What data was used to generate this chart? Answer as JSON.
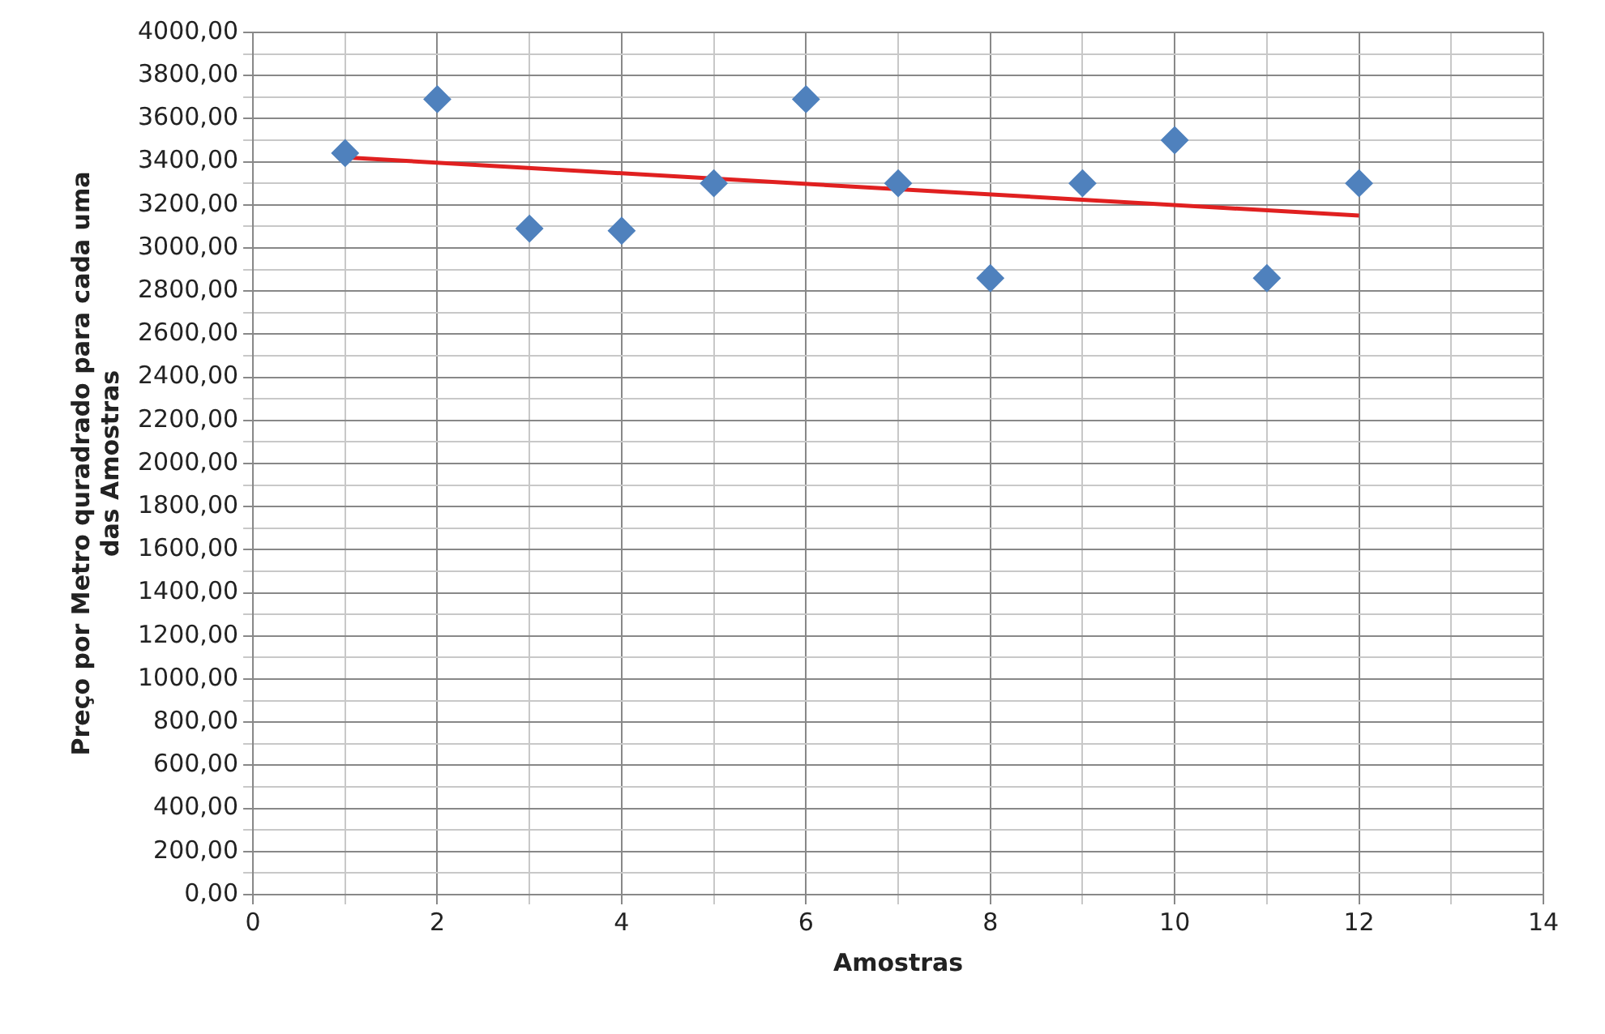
{
  "chart_data": {
    "type": "scatter",
    "xlabel": "Amostras",
    "ylabel": "Preço por Metro quradrado para cada uma\ndas Amostras",
    "x": [
      1,
      2,
      3,
      4,
      5,
      6,
      7,
      8,
      9,
      10,
      11,
      12
    ],
    "series": [
      {
        "color": "#4f81bd",
        "marker": "diamond",
        "values": [
          3440,
          3690,
          3090,
          3080,
          3300,
          3690,
          3300,
          2860,
          3300,
          3500,
          2860,
          3300
        ]
      },
      {
        "type": "line",
        "color": "#e02020",
        "marker": "none",
        "x": [
          1,
          12
        ],
        "values": [
          3420,
          3150
        ]
      }
    ],
    "xlim": [
      0,
      14
    ],
    "xticks": [
      0,
      {
        "value": 1,
        "label": null
      },
      2,
      {
        "value": 3,
        "label": null
      },
      4,
      {
        "value": 5,
        "label": null
      },
      6,
      {
        "value": 7,
        "label": null
      },
      8,
      {
        "value": 9,
        "label": null
      },
      10,
      {
        "value": 11,
        "label": null
      },
      12,
      {
        "value": 13,
        "label": null
      },
      14
    ],
    "ylim": [
      0,
      4000
    ],
    "yticks": [
      {
        "value": 0,
        "label": "0,00"
      },
      {
        "value": 100,
        "label": null
      },
      {
        "value": 200,
        "label": "200,00"
      },
      {
        "value": 300,
        "label": null
      },
      {
        "value": 400,
        "label": "400,00"
      },
      {
        "value": 500,
        "label": null
      },
      {
        "value": 600,
        "label": "600,00"
      },
      {
        "value": 700,
        "label": null
      },
      {
        "value": 800,
        "label": "800,00"
      },
      {
        "value": 900,
        "label": null
      },
      {
        "value": 1000,
        "label": "1000,00"
      },
      {
        "value": 1100,
        "label": null
      },
      {
        "value": 1200,
        "label": "1200,00"
      },
      {
        "value": 1300,
        "label": null
      },
      {
        "value": 1400,
        "label": "1400,00"
      },
      {
        "value": 1500,
        "label": null
      },
      {
        "value": 1600,
        "label": "1600,00"
      },
      {
        "value": 1700,
        "label": null
      },
      {
        "value": 1800,
        "label": "1800,00"
      },
      {
        "value": 1900,
        "label": null
      },
      {
        "value": 2000,
        "label": "2000,00"
      },
      {
        "value": 2100,
        "label": null
      },
      {
        "value": 2200,
        "label": "2200,00"
      },
      {
        "value": 2300,
        "label": null
      },
      {
        "value": 2400,
        "label": "2400,00"
      },
      {
        "value": 2500,
        "label": null
      },
      {
        "value": 2600,
        "label": "2600,00"
      },
      {
        "value": 2700,
        "label": null
      },
      {
        "value": 2800,
        "label": "2800,00"
      },
      {
        "value": 2900,
        "label": null
      },
      {
        "value": 3000,
        "label": "3000,00"
      },
      {
        "value": 3100,
        "label": null
      },
      {
        "value": 3200,
        "label": "3200,00"
      },
      {
        "value": 3300,
        "label": null
      },
      {
        "value": 3400,
        "label": "3400,00"
      },
      {
        "value": 3500,
        "label": null
      },
      {
        "value": 3600,
        "label": "3600,00"
      },
      {
        "value": 3700,
        "label": null
      },
      {
        "value": 3800,
        "label": "3800,00"
      },
      {
        "value": 3900,
        "label": null
      },
      {
        "value": 4000,
        "label": "4000,00"
      }
    ],
    "grid": true,
    "legend": false
  }
}
